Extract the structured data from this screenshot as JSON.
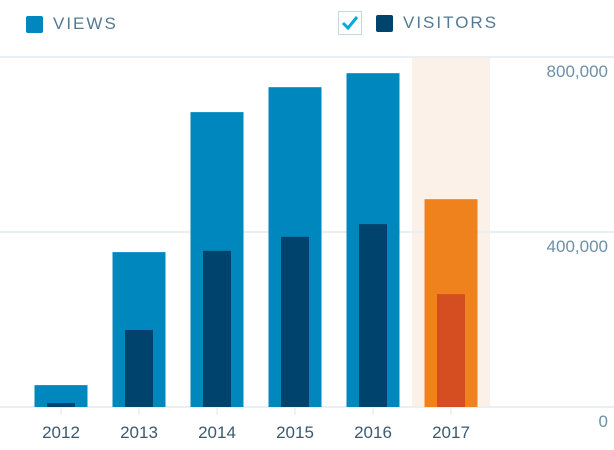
{
  "legend": {
    "views_label": "VIEWS",
    "visitors_label": "VISITORS",
    "visitors_checked": true
  },
  "colors": {
    "views": "#0087be",
    "visitors": "#00436c",
    "highlight_views": "#f0821e",
    "highlight_visitors": "#d54e21",
    "highlight_bg": "#fcf1e8",
    "grid": "#e9eff3",
    "check": "#00aadc"
  },
  "chart_data": {
    "type": "bar",
    "categories": [
      "2012",
      "2013",
      "2014",
      "2015",
      "2016",
      "2017"
    ],
    "series": [
      {
        "name": "VIEWS",
        "values": [
          50000,
          354000,
          674000,
          731000,
          763000,
          475000
        ]
      },
      {
        "name": "VISITORS",
        "values": [
          9000,
          176000,
          357000,
          389000,
          418000,
          258000
        ]
      }
    ],
    "highlighted_category": "2017",
    "ylim": [
      0,
      800000
    ],
    "yticks": [
      0,
      400000,
      800000
    ],
    "ytick_labels": [
      "0",
      "400,000",
      "800,000"
    ],
    "grid": true,
    "legend_placement": "top"
  }
}
